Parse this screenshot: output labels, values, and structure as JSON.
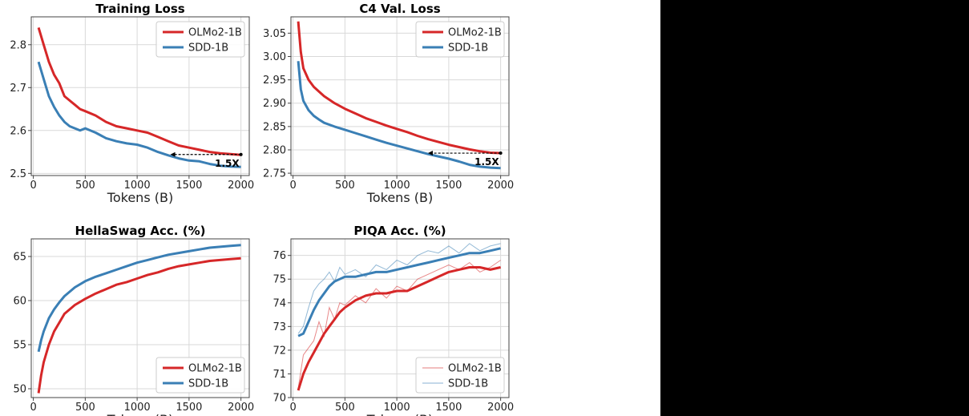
{
  "colors": {
    "olmo": "#d62728",
    "sdd": "#3a7fb5",
    "grid": "#d9d9d9",
    "text": "#222222"
  },
  "chart_data": [
    {
      "type": "line",
      "title": "Training Loss",
      "xlabel": "Tokens (B)",
      "ylabel": "",
      "xlim": [
        -20,
        2080
      ],
      "ylim": [
        2.495,
        2.865
      ],
      "xticks": [
        0,
        500,
        1000,
        1500,
        2000
      ],
      "yticks": [
        2.5,
        2.6,
        2.7,
        2.8
      ],
      "ytick_labels": [
        "2.5",
        "2.6",
        "2.7",
        "2.8"
      ],
      "grid": true,
      "legend": "top-right",
      "series": [
        {
          "name": "OLMo2-1B",
          "color": "#d62728",
          "x": [
            50,
            100,
            150,
            200,
            250,
            300,
            350,
            400,
            450,
            500,
            600,
            700,
            800,
            900,
            1000,
            1100,
            1200,
            1300,
            1400,
            1500,
            1600,
            1700,
            1800,
            1900,
            2000
          ],
          "y": [
            2.84,
            2.8,
            2.76,
            2.73,
            2.71,
            2.68,
            2.67,
            2.66,
            2.65,
            2.645,
            2.635,
            2.62,
            2.61,
            2.605,
            2.6,
            2.595,
            2.585,
            2.575,
            2.565,
            2.56,
            2.555,
            2.55,
            2.547,
            2.545,
            2.543
          ]
        },
        {
          "name": "SDD-1B",
          "color": "#3a7fb5",
          "x": [
            50,
            100,
            150,
            200,
            250,
            300,
            350,
            400,
            450,
            500,
            600,
            700,
            800,
            900,
            1000,
            1100,
            1200,
            1300,
            1400,
            1500,
            1600,
            1700,
            1800,
            1900,
            2000
          ],
          "y": [
            2.76,
            2.72,
            2.68,
            2.655,
            2.635,
            2.62,
            2.61,
            2.605,
            2.6,
            2.605,
            2.595,
            2.582,
            2.575,
            2.57,
            2.567,
            2.56,
            2.55,
            2.542,
            2.535,
            2.53,
            2.528,
            2.522,
            2.518,
            2.516,
            2.515
          ]
        }
      ],
      "annotation": {
        "text": "1.5X",
        "x_from": 2000,
        "x_to": 1320,
        "y": 2.544
      }
    },
    {
      "type": "line",
      "title": "C4 Val. Loss",
      "xlabel": "Tokens (B)",
      "ylabel": "",
      "xlim": [
        -20,
        2080
      ],
      "ylim": [
        2.745,
        3.085
      ],
      "xticks": [
        0,
        500,
        1000,
        1500,
        2000
      ],
      "yticks": [
        2.75,
        2.8,
        2.85,
        2.9,
        2.95,
        3.0,
        3.05
      ],
      "ytick_labels": [
        "2.75",
        "2.80",
        "2.85",
        "2.90",
        "2.95",
        "3.00",
        "3.05"
      ],
      "grid": true,
      "legend": "top-right",
      "series": [
        {
          "name": "OLMo2-1B",
          "color": "#d62728",
          "x": [
            50,
            75,
            100,
            150,
            200,
            250,
            300,
            400,
            500,
            600,
            700,
            800,
            900,
            1000,
            1100,
            1200,
            1300,
            1400,
            1500,
            1600,
            1700,
            1800,
            1900,
            2000
          ],
          "y": [
            3.075,
            3.01,
            2.975,
            2.95,
            2.935,
            2.925,
            2.915,
            2.9,
            2.888,
            2.878,
            2.868,
            2.86,
            2.852,
            2.845,
            2.838,
            2.83,
            2.823,
            2.817,
            2.811,
            2.806,
            2.801,
            2.797,
            2.794,
            2.793
          ]
        },
        {
          "name": "SDD-1B",
          "color": "#3a7fb5",
          "x": [
            50,
            75,
            100,
            150,
            200,
            250,
            300,
            400,
            500,
            600,
            700,
            800,
            900,
            1000,
            1100,
            1200,
            1300,
            1400,
            1500,
            1600,
            1700,
            1800,
            1900,
            2000
          ],
          "y": [
            2.99,
            2.93,
            2.905,
            2.885,
            2.873,
            2.865,
            2.858,
            2.85,
            2.843,
            2.836,
            2.829,
            2.822,
            2.815,
            2.809,
            2.803,
            2.797,
            2.791,
            2.786,
            2.781,
            2.775,
            2.768,
            2.764,
            2.762,
            2.761
          ]
        }
      ],
      "annotation": {
        "text": "1.5X",
        "x_from": 2000,
        "x_to": 1300,
        "y": 2.793
      }
    },
    {
      "type": "line",
      "title": "HellaSwag Acc. (%)",
      "xlabel": "Tokens (B)",
      "ylabel": "",
      "xlim": [
        -20,
        2080
      ],
      "ylim": [
        49.0,
        67.0
      ],
      "xticks": [
        0,
        500,
        1000,
        1500,
        2000
      ],
      "yticks": [
        50,
        55,
        60,
        65
      ],
      "ytick_labels": [
        "50",
        "55",
        "60",
        "65"
      ],
      "grid": true,
      "legend": "bottom-right",
      "series": [
        {
          "name": "OLMo2-1B",
          "color": "#d62728",
          "x": [
            50,
            75,
            100,
            150,
            200,
            250,
            300,
            400,
            500,
            600,
            700,
            800,
            900,
            1000,
            1100,
            1200,
            1300,
            1400,
            1500,
            1600,
            1700,
            1800,
            1900,
            2000
          ],
          "y": [
            49.5,
            51.5,
            53.0,
            55.0,
            56.5,
            57.5,
            58.5,
            59.5,
            60.2,
            60.8,
            61.3,
            61.8,
            62.1,
            62.5,
            62.9,
            63.2,
            63.6,
            63.9,
            64.1,
            64.3,
            64.5,
            64.6,
            64.7,
            64.8
          ]
        },
        {
          "name": "SDD-1B",
          "color": "#3a7fb5",
          "x": [
            50,
            75,
            100,
            150,
            200,
            250,
            300,
            400,
            500,
            600,
            700,
            800,
            900,
            1000,
            1100,
            1200,
            1300,
            1400,
            1500,
            1600,
            1700,
            1800,
            1900,
            2000
          ],
          "y": [
            54.2,
            55.5,
            56.5,
            58.0,
            59.0,
            59.8,
            60.5,
            61.5,
            62.2,
            62.7,
            63.1,
            63.5,
            63.9,
            64.3,
            64.6,
            64.9,
            65.2,
            65.4,
            65.6,
            65.8,
            66.0,
            66.1,
            66.2,
            66.3
          ]
        }
      ]
    },
    {
      "type": "line",
      "title": "PIQA Acc. (%)",
      "xlabel": "Tokens (B)",
      "ylabel": "",
      "xlim": [
        -20,
        2080
      ],
      "ylim": [
        70.0,
        76.7
      ],
      "xticks": [
        0,
        500,
        1000,
        1500,
        2000
      ],
      "yticks": [
        70,
        71,
        72,
        73,
        74,
        75,
        76
      ],
      "ytick_labels": [
        "70",
        "71",
        "72",
        "73",
        "74",
        "75",
        "76"
      ],
      "grid": true,
      "legend": "bottom-right",
      "series": [
        {
          "name": "OLMo2-1B",
          "color": "#d62728",
          "x": [
            50,
            100,
            150,
            200,
            250,
            300,
            350,
            400,
            450,
            500,
            600,
            700,
            800,
            900,
            1000,
            1100,
            1200,
            1300,
            1400,
            1500,
            1600,
            1700,
            1800,
            1900,
            2000
          ],
          "y": [
            70.3,
            71.0,
            71.5,
            71.9,
            72.3,
            72.7,
            73.0,
            73.3,
            73.6,
            73.8,
            74.1,
            74.3,
            74.4,
            74.4,
            74.5,
            74.5,
            74.7,
            74.9,
            75.1,
            75.3,
            75.4,
            75.5,
            75.5,
            75.4,
            75.5
          ]
        },
        {
          "name": "SDD-1B",
          "color": "#3a7fb5",
          "x": [
            50,
            100,
            150,
            200,
            250,
            300,
            350,
            400,
            450,
            500,
            600,
            700,
            800,
            900,
            1000,
            1100,
            1200,
            1300,
            1400,
            1500,
            1600,
            1700,
            1800,
            1900,
            2000
          ],
          "y": [
            72.6,
            72.7,
            73.2,
            73.7,
            74.1,
            74.4,
            74.7,
            74.9,
            75.0,
            75.1,
            75.1,
            75.2,
            75.3,
            75.3,
            75.4,
            75.5,
            75.6,
            75.7,
            75.8,
            75.9,
            76.0,
            76.1,
            76.1,
            76.2,
            76.3
          ]
        }
      ],
      "raw_series": [
        {
          "name": "OLMo2-1B",
          "color": "#d62728",
          "x": [
            50,
            100,
            150,
            200,
            250,
            300,
            350,
            400,
            450,
            500,
            600,
            700,
            800,
            900,
            1000,
            1100,
            1200,
            1300,
            1400,
            1500,
            1600,
            1700,
            1800,
            1900,
            2000
          ],
          "y": [
            70.4,
            71.8,
            72.1,
            72.4,
            73.2,
            72.6,
            73.8,
            73.3,
            74.0,
            73.9,
            74.3,
            74.0,
            74.6,
            74.2,
            74.7,
            74.5,
            75.0,
            75.2,
            75.4,
            75.6,
            75.4,
            75.7,
            75.3,
            75.5,
            75.8
          ]
        },
        {
          "name": "SDD-1B",
          "color": "#3a7fb5",
          "x": [
            50,
            100,
            150,
            200,
            250,
            300,
            350,
            400,
            450,
            500,
            600,
            700,
            800,
            900,
            1000,
            1100,
            1200,
            1300,
            1400,
            1500,
            1600,
            1700,
            1800,
            1900,
            2000
          ],
          "y": [
            72.7,
            73.0,
            73.8,
            74.5,
            74.8,
            75.0,
            75.3,
            74.9,
            75.5,
            75.2,
            75.4,
            75.1,
            75.6,
            75.4,
            75.8,
            75.6,
            76.0,
            76.2,
            76.1,
            76.4,
            76.1,
            76.5,
            76.2,
            76.4,
            76.5
          ]
        }
      ]
    }
  ]
}
